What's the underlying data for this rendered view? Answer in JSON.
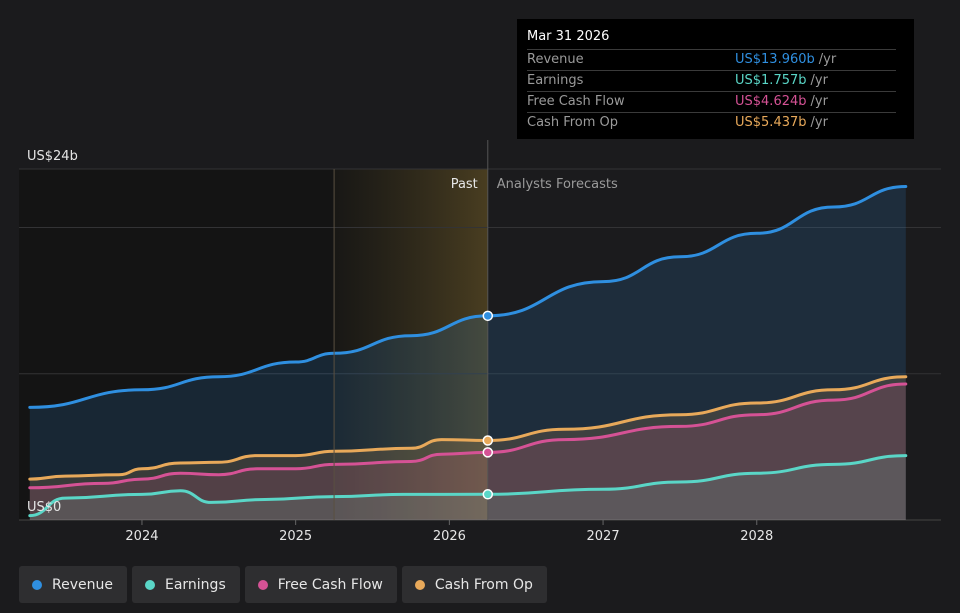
{
  "chart_data": {
    "type": "area",
    "y_axis": {
      "top_label": "US$24b",
      "bottom_label": "US$0",
      "ylim": [
        0,
        24
      ]
    },
    "x_axis": {
      "ticks": [
        "2024",
        "2025",
        "2026",
        "2027",
        "2028"
      ],
      "xlim": [
        2023.2,
        2028.97
      ]
    },
    "divider": {
      "x": 2026.25,
      "past_label": "Past",
      "forecast_label": "Analysts Forecasts",
      "shade_start": 2025.25
    },
    "series": [
      {
        "name": "Revenue",
        "color": "#2f8fe0",
        "points": [
          [
            2023.27,
            7.7
          ],
          [
            2024.0,
            8.9
          ],
          [
            2024.5,
            9.8
          ],
          [
            2025.0,
            10.8
          ],
          [
            2025.25,
            11.4
          ],
          [
            2025.75,
            12.6
          ],
          [
            2026.25,
            13.96
          ],
          [
            2027.0,
            16.3
          ],
          [
            2027.5,
            18.0
          ],
          [
            2028.0,
            19.6
          ],
          [
            2028.5,
            21.4
          ],
          [
            2028.97,
            22.8
          ]
        ]
      },
      {
        "name": "Earnings",
        "color": "#5ad6c7",
        "points": [
          [
            2023.27,
            0.3
          ],
          [
            2023.5,
            1.5
          ],
          [
            2024.0,
            1.75
          ],
          [
            2024.25,
            2.0
          ],
          [
            2024.45,
            1.2
          ],
          [
            2024.8,
            1.4
          ],
          [
            2025.25,
            1.6
          ],
          [
            2025.7,
            1.75
          ],
          [
            2026.25,
            1.757
          ],
          [
            2027.0,
            2.1
          ],
          [
            2027.5,
            2.6
          ],
          [
            2028.0,
            3.2
          ],
          [
            2028.5,
            3.8
          ],
          [
            2028.97,
            4.4
          ]
        ]
      },
      {
        "name": "Free Cash Flow",
        "color": "#d55295",
        "points": [
          [
            2023.27,
            2.2
          ],
          [
            2023.75,
            2.5
          ],
          [
            2024.0,
            2.8
          ],
          [
            2024.25,
            3.2
          ],
          [
            2024.5,
            3.1
          ],
          [
            2024.75,
            3.5
          ],
          [
            2025.0,
            3.5
          ],
          [
            2025.25,
            3.8
          ],
          [
            2025.75,
            4.0
          ],
          [
            2025.95,
            4.5
          ],
          [
            2026.25,
            4.624
          ],
          [
            2026.75,
            5.5
          ],
          [
            2027.5,
            6.4
          ],
          [
            2028.0,
            7.2
          ],
          [
            2028.5,
            8.2
          ],
          [
            2028.97,
            9.3
          ]
        ]
      },
      {
        "name": "Cash From Op",
        "color": "#e8a95a",
        "points": [
          [
            2023.27,
            2.8
          ],
          [
            2023.5,
            3.0
          ],
          [
            2023.85,
            3.1
          ],
          [
            2024.0,
            3.5
          ],
          [
            2024.25,
            3.9
          ],
          [
            2024.5,
            3.95
          ],
          [
            2024.75,
            4.4
          ],
          [
            2025.0,
            4.4
          ],
          [
            2025.25,
            4.7
          ],
          [
            2025.75,
            4.9
          ],
          [
            2025.95,
            5.5
          ],
          [
            2026.25,
            5.437
          ],
          [
            2026.75,
            6.2
          ],
          [
            2027.5,
            7.2
          ],
          [
            2028.0,
            8.0
          ],
          [
            2028.5,
            8.9
          ],
          [
            2028.97,
            9.8
          ]
        ]
      }
    ]
  },
  "tooltip": {
    "date": "Mar 31 2026",
    "unit": "/yr",
    "rows": [
      {
        "label": "Revenue",
        "value": "US$13.960b",
        "color": "#2f8fe0"
      },
      {
        "label": "Earnings",
        "value": "US$1.757b",
        "color": "#5ad6c7"
      },
      {
        "label": "Free Cash Flow",
        "value": "US$4.624b",
        "color": "#d55295"
      },
      {
        "label": "Cash From Op",
        "value": "US$5.437b",
        "color": "#e8a95a"
      }
    ]
  },
  "legend": [
    {
      "label": "Revenue",
      "color": "#2f8fe0"
    },
    {
      "label": "Earnings",
      "color": "#5ad6c7"
    },
    {
      "label": "Free Cash Flow",
      "color": "#d55295"
    },
    {
      "label": "Cash From Op",
      "color": "#e8a95a"
    }
  ]
}
